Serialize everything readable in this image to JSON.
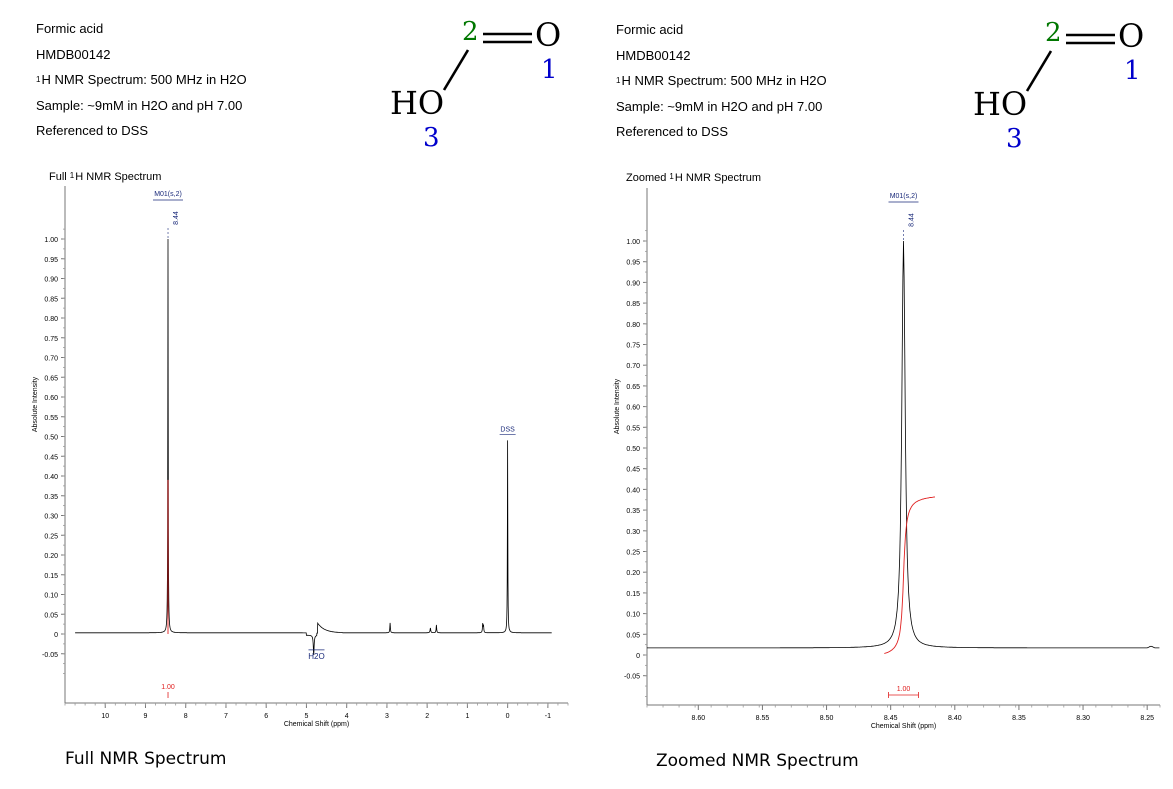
{
  "colors": {
    "spectrum": "#000000",
    "integral": "#e02020",
    "label": "#1a2a7a",
    "atom_o": "#0000cc",
    "atom_c": "#007700"
  },
  "panels": [
    {
      "compound": "Formic acid",
      "hmdb_id": "HMDB00142",
      "spectrum_sup": "1",
      "spectrum_line": "H NMR Spectrum: 500 MHz in H2O",
      "sample": "Sample: ~9mM in H2O and pH 7.00",
      "reference": "Referenced to DSS",
      "spectrum_title_pre": "Full ",
      "spectrum_title_post": "H NMR Spectrum",
      "caption": "Full NMR Spectrum"
    },
    {
      "compound": "Formic acid",
      "hmdb_id": "HMDB00142",
      "spectrum_sup": "1",
      "spectrum_line": "H NMR Spectrum: 500 MHz in H2O",
      "sample": "Sample: ~9mM in H2O and pH 7.00",
      "reference": "Referenced to DSS",
      "spectrum_title_pre": "Zoomed ",
      "spectrum_title_post": "H NMR Spectrum",
      "caption": "Zoomed NMR Spectrum"
    }
  ],
  "molecule": {
    "atoms": [
      {
        "symbol": "O",
        "number": "1"
      },
      {
        "symbol": "",
        "number": "2"
      },
      {
        "symbol": "HO",
        "number": "3"
      }
    ]
  },
  "chart_data": [
    {
      "type": "line",
      "title": "Full 1H NMR Spectrum",
      "xlabel": "Chemical Shift (ppm)",
      "ylabel": "Absolute Intensity",
      "xlim": [
        11,
        -1.5
      ],
      "ylim": [
        -0.1,
        1.1
      ],
      "x_reversed": true,
      "xticks": [
        10,
        9,
        8,
        7,
        6,
        5,
        4,
        3,
        2,
        1,
        0,
        -1
      ],
      "yticks": [
        1.0,
        0.95,
        0.9,
        0.85,
        0.8,
        0.75,
        0.7,
        0.65,
        0.6,
        0.55,
        0.5,
        0.45,
        0.4,
        0.35,
        0.3,
        0.25,
        0.2,
        0.15,
        0.1,
        0.05,
        0,
        -0.05
      ],
      "ytick_labels": [
        "1.00",
        "0.95",
        "0.90",
        "0.85",
        "0.80",
        "0.75",
        "0.70",
        "0.65",
        "0.60",
        "0.55",
        "0.50",
        "0.45",
        "0.40",
        "0.35",
        "0.30",
        "0.25",
        "0.20",
        "0.15",
        "0.10",
        "0.05",
        "0",
        "-0.05"
      ],
      "xtick_labels": [
        "10",
        "9",
        "8",
        "7",
        "6",
        "5",
        "4",
        "3",
        "2",
        "1",
        "0",
        "-1"
      ],
      "peaks": [
        {
          "x": 8.44,
          "y": 1.0
        },
        {
          "x": 4.8,
          "y": -0.05
        },
        {
          "x": 4.72,
          "y": 0.025
        },
        {
          "x": 2.92,
          "y": 0.03
        },
        {
          "x": 1.92,
          "y": 0.01
        },
        {
          "x": 1.77,
          "y": 0.02
        },
        {
          "x": 0.62,
          "y": 0.025
        },
        {
          "x": 0.0,
          "y": 0.49
        }
      ],
      "annotations": [
        {
          "x": 8.44,
          "y": 1.0,
          "label": "M01(s,2)",
          "value": "8.44"
        },
        {
          "x": 0.0,
          "y": 0.49,
          "label": "DSS"
        },
        {
          "x": 4.8,
          "y": -0.03,
          "label": "H2O"
        }
      ],
      "integrals": [
        {
          "x": 8.44,
          "value": "1.00",
          "height": 0.39
        }
      ]
    },
    {
      "type": "line",
      "title": "Zoomed 1H NMR Spectrum",
      "xlabel": "Chemical Shift (ppm)",
      "ylabel": "Absolute Intensity",
      "xlim": [
        8.64,
        8.24
      ],
      "ylim": [
        -0.1,
        1.1
      ],
      "x_reversed": true,
      "xticks": [
        8.6,
        8.55,
        8.5,
        8.45,
        8.4,
        8.35,
        8.3,
        8.25
      ],
      "xtick_labels": [
        "8.60",
        "8.55",
        "8.50",
        "8.45",
        "8.40",
        "8.35",
        "8.30",
        "8.25"
      ],
      "yticks": [
        1.0,
        0.95,
        0.9,
        0.85,
        0.8,
        0.75,
        0.7,
        0.65,
        0.6,
        0.55,
        0.5,
        0.45,
        0.4,
        0.35,
        0.3,
        0.25,
        0.2,
        0.15,
        0.1,
        0.05,
        0,
        -0.05
      ],
      "ytick_labels": [
        "1.00",
        "0.95",
        "0.90",
        "0.85",
        "0.80",
        "0.75",
        "0.70",
        "0.65",
        "0.60",
        "0.55",
        "0.50",
        "0.45",
        "0.40",
        "0.35",
        "0.30",
        "0.25",
        "0.20",
        "0.15",
        "0.10",
        "0.05",
        "0",
        "-0.05"
      ],
      "peaks": [
        {
          "x": 8.44,
          "y": 1.0
        }
      ],
      "annotations": [
        {
          "x": 8.44,
          "y": 1.0,
          "label": "M01(s,2)",
          "value": "8.44"
        }
      ],
      "integrals": [
        {
          "x": 8.44,
          "value": "1.00",
          "height": 0.39
        }
      ]
    }
  ]
}
